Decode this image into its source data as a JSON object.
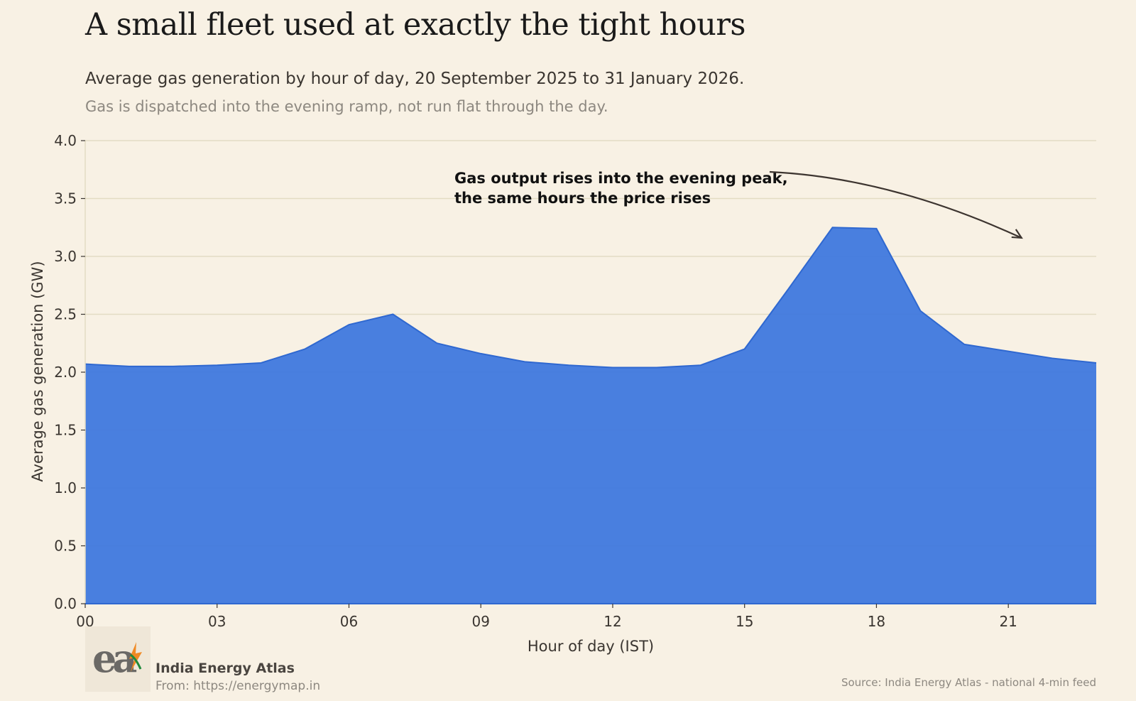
{
  "header": {
    "title": "A small fleet used at exactly the tight hours",
    "subtitle": "Average gas generation by hour of day, 20 September 2025 to 31 January 2026.",
    "note": "Gas is dispatched into the evening ramp, not run flat through the day."
  },
  "chart_data": {
    "type": "area",
    "title": "A small fleet used at exactly the tight hours",
    "xlabel": "Hour of day (IST)",
    "ylabel": "Average gas generation (GW)",
    "x": [
      0,
      1,
      2,
      3,
      4,
      5,
      6,
      7,
      8,
      9,
      10,
      11,
      12,
      13,
      14,
      15,
      16,
      17,
      18,
      19,
      20,
      21,
      22,
      23
    ],
    "series": [
      {
        "values": [
          2.07,
          2.05,
          2.05,
          2.06,
          2.08,
          2.2,
          2.41,
          2.5,
          2.25,
          2.16,
          2.09,
          2.06,
          2.04,
          2.04,
          2.06,
          2.2,
          2.72,
          3.25,
          3.24,
          2.53,
          2.24,
          2.18,
          2.12,
          2.08
        ],
        "color": "#3f78de"
      }
    ],
    "xlim": [
      0,
      23
    ],
    "ylim": [
      0,
      4.0
    ],
    "xticks": [
      0,
      3,
      6,
      9,
      12,
      15,
      18,
      21
    ],
    "xtick_labels": [
      "00",
      "03",
      "06",
      "09",
      "12",
      "15",
      "18",
      "21"
    ],
    "yticks": [
      0.0,
      0.5,
      1.0,
      1.5,
      2.0,
      2.5,
      3.0,
      3.5,
      4.0
    ],
    "ytick_labels": [
      "0.0",
      "0.5",
      "1.0",
      "1.5",
      "2.0",
      "2.5",
      "3.0",
      "3.5",
      "4.0"
    ],
    "grid": true,
    "annotation": {
      "lines": [
        "Gas output rises into the evening peak,",
        "the same hours the price rises"
      ],
      "arrow_target": {
        "x": 21.3,
        "y": 3.16
      }
    }
  },
  "footer": {
    "source": "Source: India Energy Atlas - national 4-min feed",
    "brand_name": "India Energy Atlas",
    "brand_url": "From: https://energymap.in",
    "logo_text": "ea"
  },
  "colors": {
    "background": "#f8f1e4",
    "area": "#3f78de",
    "grid": "#e3dcc3",
    "accent_orange": "#f08a24",
    "accent_green": "#1f8a3a"
  }
}
